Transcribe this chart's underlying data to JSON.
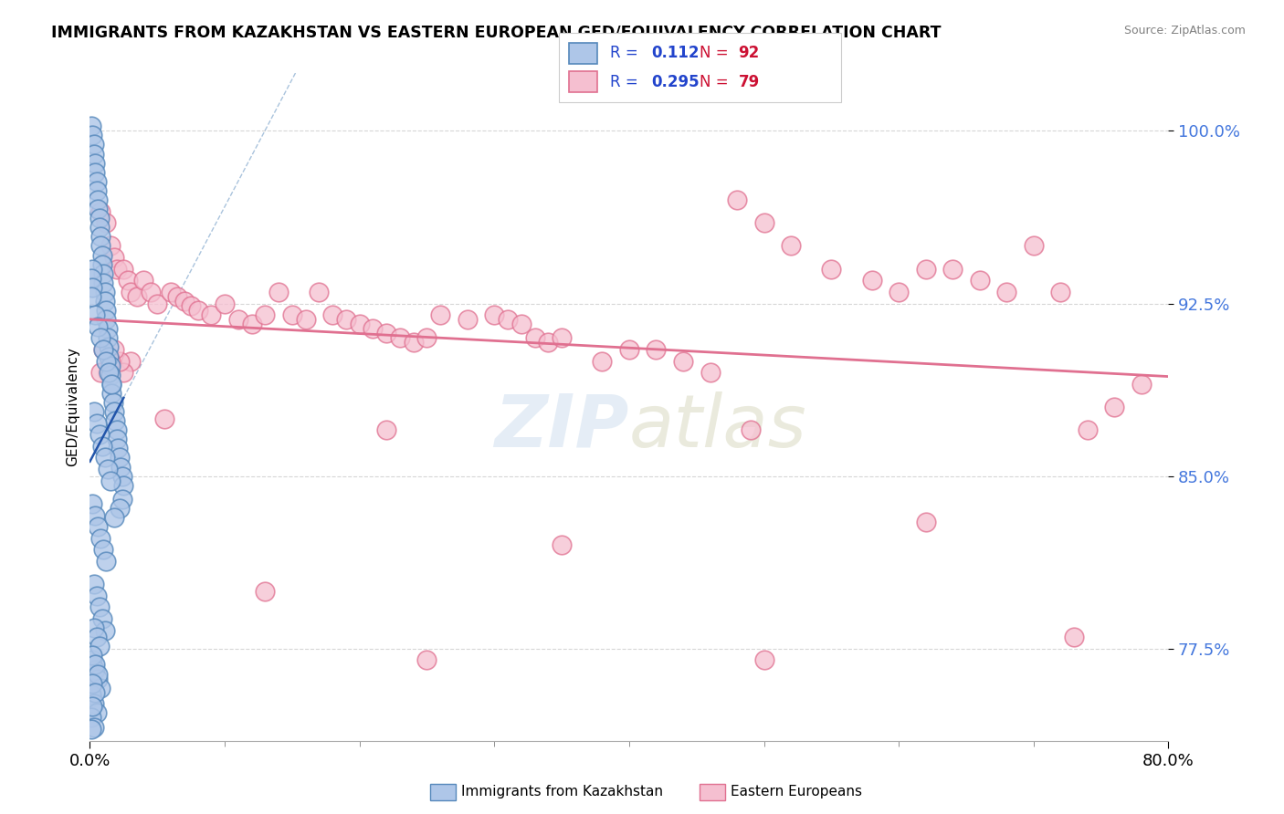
{
  "title": "IMMIGRANTS FROM KAZAKHSTAN VS EASTERN EUROPEAN GED/EQUIVALENCY CORRELATION CHART",
  "source": "Source: ZipAtlas.com",
  "ylabel": "GED/Equivalency",
  "xlim": [
    0.0,
    0.8
  ],
  "ylim": [
    0.735,
    1.025
  ],
  "yticks": [
    0.775,
    0.85,
    0.925,
    1.0
  ],
  "ytick_labels": [
    "77.5%",
    "85.0%",
    "92.5%",
    "100.0%"
  ],
  "xtick_positions": [
    0.0,
    0.8
  ],
  "xtick_labels": [
    "0.0%",
    "80.0%"
  ],
  "legend_R": [
    "0.112",
    "0.295"
  ],
  "legend_N": [
    "92",
    "79"
  ],
  "blue_color": "#aec6e8",
  "pink_color": "#f5bfd0",
  "blue_edge": "#5588bb",
  "pink_edge": "#e07090",
  "blue_line_color": "#2255aa",
  "pink_line_color": "#e07090",
  "blue_scatter_x": [
    0.001,
    0.002,
    0.003,
    0.003,
    0.004,
    0.004,
    0.005,
    0.005,
    0.006,
    0.006,
    0.007,
    0.007,
    0.008,
    0.008,
    0.009,
    0.009,
    0.01,
    0.01,
    0.011,
    0.011,
    0.012,
    0.012,
    0.013,
    0.013,
    0.014,
    0.014,
    0.015,
    0.015,
    0.016,
    0.016,
    0.017,
    0.018,
    0.019,
    0.02,
    0.02,
    0.021,
    0.022,
    0.023,
    0.024,
    0.025,
    0.004,
    0.006,
    0.008,
    0.01,
    0.012,
    0.014,
    0.016,
    0.003,
    0.005,
    0.007,
    0.009,
    0.011,
    0.013,
    0.015,
    0.002,
    0.004,
    0.006,
    0.008,
    0.01,
    0.012,
    0.003,
    0.005,
    0.007,
    0.009,
    0.011,
    0.002,
    0.004,
    0.006,
    0.008,
    0.001,
    0.003,
    0.005,
    0.007,
    0.002,
    0.004,
    0.006,
    0.001,
    0.003,
    0.005,
    0.002,
    0.004,
    0.001,
    0.003,
    0.002,
    0.001,
    0.002,
    0.001,
    0.002,
    0.001,
    0.024,
    0.022,
    0.018
  ],
  "blue_scatter_y": [
    1.002,
    0.998,
    0.994,
    0.99,
    0.986,
    0.982,
    0.978,
    0.974,
    0.97,
    0.966,
    0.962,
    0.958,
    0.954,
    0.95,
    0.946,
    0.942,
    0.938,
    0.934,
    0.93,
    0.926,
    0.922,
    0.918,
    0.914,
    0.91,
    0.906,
    0.902,
    0.898,
    0.894,
    0.89,
    0.886,
    0.882,
    0.878,
    0.874,
    0.87,
    0.866,
    0.862,
    0.858,
    0.854,
    0.85,
    0.846,
    0.92,
    0.915,
    0.91,
    0.905,
    0.9,
    0.895,
    0.89,
    0.878,
    0.873,
    0.868,
    0.863,
    0.858,
    0.853,
    0.848,
    0.838,
    0.833,
    0.828,
    0.823,
    0.818,
    0.813,
    0.803,
    0.798,
    0.793,
    0.788,
    0.783,
    0.77,
    0.766,
    0.762,
    0.758,
    0.754,
    0.784,
    0.78,
    0.776,
    0.772,
    0.768,
    0.764,
    0.755,
    0.751,
    0.747,
    0.76,
    0.756,
    0.745,
    0.741,
    0.75,
    0.74,
    0.94,
    0.936,
    0.932,
    0.928,
    0.84,
    0.836,
    0.832
  ],
  "pink_scatter_x": [
    0.008,
    0.012,
    0.015,
    0.018,
    0.02,
    0.025,
    0.028,
    0.03,
    0.035,
    0.04,
    0.045,
    0.05,
    0.06,
    0.065,
    0.07,
    0.075,
    0.08,
    0.09,
    0.1,
    0.11,
    0.12,
    0.13,
    0.14,
    0.15,
    0.16,
    0.17,
    0.18,
    0.19,
    0.2,
    0.21,
    0.22,
    0.23,
    0.24,
    0.25,
    0.26,
    0.28,
    0.3,
    0.31,
    0.32,
    0.33,
    0.34,
    0.35,
    0.38,
    0.4,
    0.42,
    0.44,
    0.46,
    0.48,
    0.5,
    0.52,
    0.55,
    0.58,
    0.6,
    0.62,
    0.64,
    0.66,
    0.68,
    0.7,
    0.72,
    0.74,
    0.76,
    0.78,
    0.03,
    0.025,
    0.022,
    0.018,
    0.015,
    0.013,
    0.01,
    0.008,
    0.055,
    0.13,
    0.22,
    0.35,
    0.49,
    0.62,
    0.73,
    0.25,
    0.5
  ],
  "pink_scatter_y": [
    0.965,
    0.96,
    0.95,
    0.945,
    0.94,
    0.94,
    0.935,
    0.93,
    0.928,
    0.935,
    0.93,
    0.925,
    0.93,
    0.928,
    0.926,
    0.924,
    0.922,
    0.92,
    0.925,
    0.918,
    0.916,
    0.92,
    0.93,
    0.92,
    0.918,
    0.93,
    0.92,
    0.918,
    0.916,
    0.914,
    0.912,
    0.91,
    0.908,
    0.91,
    0.92,
    0.918,
    0.92,
    0.918,
    0.916,
    0.91,
    0.908,
    0.91,
    0.9,
    0.905,
    0.905,
    0.9,
    0.895,
    0.97,
    0.96,
    0.95,
    0.94,
    0.935,
    0.93,
    0.94,
    0.94,
    0.935,
    0.93,
    0.95,
    0.93,
    0.87,
    0.88,
    0.89,
    0.9,
    0.895,
    0.9,
    0.905,
    0.9,
    0.895,
    0.905,
    0.895,
    0.875,
    0.8,
    0.87,
    0.82,
    0.87,
    0.83,
    0.78,
    0.77,
    0.77
  ]
}
